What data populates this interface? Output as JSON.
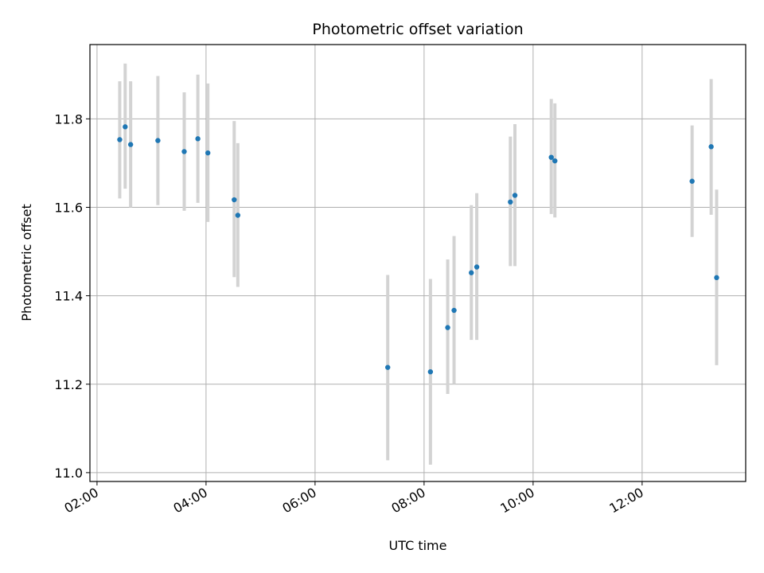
{
  "chart_data": {
    "type": "scatter",
    "title": "Photometric offset variation",
    "xlabel": "UTC time",
    "ylabel": "Photometric offset",
    "x_tick_labels": [
      "02:00",
      "04:00",
      "06:00",
      "08:00",
      "10:00",
      "12:00"
    ],
    "x_ticks_hours": [
      2,
      4,
      6,
      8,
      10,
      12
    ],
    "y_ticks": [
      11.0,
      11.2,
      11.4,
      11.6,
      11.8
    ],
    "y_tick_labels": [
      "11.0",
      "11.2",
      "11.4",
      "11.6",
      "11.8"
    ],
    "xlim_hours": [
      1.87,
      13.9
    ],
    "ylim": [
      10.98,
      11.968
    ],
    "grid": true,
    "point_color": "#1f77b4",
    "errorbar_color": "#d3d3d3",
    "points": [
      {
        "time": "02:25",
        "y": 11.753,
        "low": 11.62,
        "high": 11.885
      },
      {
        "time": "02:31",
        "y": 11.782,
        "low": 11.642,
        "high": 11.925
      },
      {
        "time": "02:37",
        "y": 11.742,
        "low": 11.6,
        "high": 11.885
      },
      {
        "time": "03:07",
        "y": 11.751,
        "low": 11.605,
        "high": 11.897
      },
      {
        "time": "03:36",
        "y": 11.726,
        "low": 11.592,
        "high": 11.86
      },
      {
        "time": "03:51",
        "y": 11.755,
        "low": 11.61,
        "high": 11.9
      },
      {
        "time": "04:02",
        "y": 11.723,
        "low": 11.567,
        "high": 11.88
      },
      {
        "time": "04:31",
        "y": 11.617,
        "low": 11.442,
        "high": 11.795
      },
      {
        "time": "04:35",
        "y": 11.582,
        "low": 11.42,
        "high": 11.745
      },
      {
        "time": "07:20",
        "y": 11.238,
        "low": 11.028,
        "high": 11.447
      },
      {
        "time": "08:07",
        "y": 11.228,
        "low": 11.018,
        "high": 11.438
      },
      {
        "time": "08:26",
        "y": 11.328,
        "low": 11.178,
        "high": 11.482
      },
      {
        "time": "08:33",
        "y": 11.367,
        "low": 11.2,
        "high": 11.535
      },
      {
        "time": "08:52",
        "y": 11.452,
        "low": 11.3,
        "high": 11.605
      },
      {
        "time": "08:58",
        "y": 11.465,
        "low": 11.3,
        "high": 11.632
      },
      {
        "time": "09:35",
        "y": 11.612,
        "low": 11.467,
        "high": 11.76
      },
      {
        "time": "09:40",
        "y": 11.627,
        "low": 11.467,
        "high": 11.788
      },
      {
        "time": "10:20",
        "y": 11.713,
        "low": 11.585,
        "high": 11.845
      },
      {
        "time": "10:24",
        "y": 11.705,
        "low": 11.577,
        "high": 11.835
      },
      {
        "time": "12:55",
        "y": 11.659,
        "low": 11.533,
        "high": 11.785
      },
      {
        "time": "13:16",
        "y": 11.737,
        "low": 11.583,
        "high": 11.89
      },
      {
        "time": "13:22",
        "y": 11.441,
        "low": 11.243,
        "high": 11.64
      }
    ]
  }
}
